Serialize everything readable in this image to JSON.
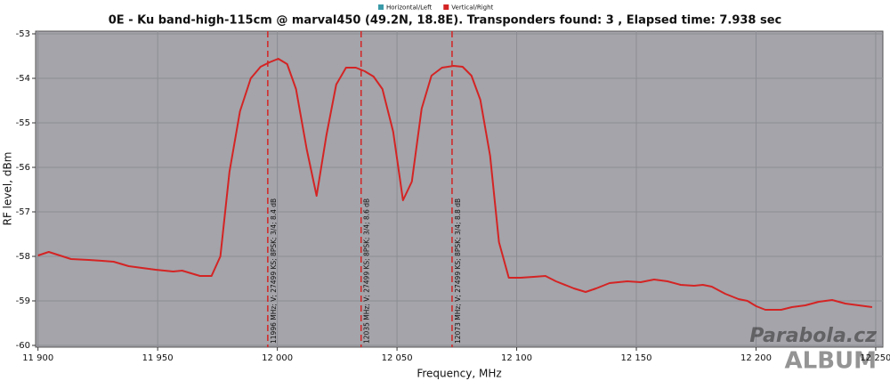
{
  "chart_data": {
    "type": "line",
    "title": "0E - Ku band-high-115cm @ marval450 (49.2N, 18.8E). Transponders found: 3 , Elapsed time: 7.938 sec",
    "xlabel": "Frequency, MHz",
    "ylabel": "RF level, dBm",
    "x": [
      11900,
      11904.5,
      11913.8,
      11921.2,
      11926.8,
      11931.6,
      11937.9,
      11943.5,
      11949.1,
      11956.5,
      11960.2,
      11967.7,
      11972.5,
      11976.2,
      11980,
      11984.4,
      11988.9,
      11993,
      11996.7,
      12000.4,
      12004.1,
      12007.8,
      12012.3,
      12016.4,
      12020.5,
      12024.6,
      12028.7,
      12032.8,
      12036.5,
      12040.2,
      12043.9,
      12048.4,
      12052.5,
      12056.2,
      12060.3,
      12064.4,
      12068.8,
      12073.7,
      12077.4,
      12081.1,
      12084.8,
      12088.9,
      12092.6,
      12096.7,
      12101.6,
      12107.1,
      12112,
      12116.4,
      12123.9,
      12128.8,
      12133.2,
      12138.8,
      12146.2,
      12151.8,
      12157.4,
      12163,
      12168.5,
      12174.1,
      12177.8,
      12181.5,
      12187.1,
      12192.7,
      12196.4,
      12200.1,
      12203.9,
      12210.5,
      12215,
      12220.6,
      12226.2,
      12231.8,
      12237.3,
      12242.9,
      12248.5
    ],
    "series": [
      {
        "name": "Horizontal/Left",
        "color": "#3a9aa8",
        "values": [
          null,
          null,
          null,
          null,
          null,
          null,
          null,
          null,
          null,
          null,
          null,
          null,
          null,
          null,
          null,
          null,
          null,
          null,
          null,
          null,
          null,
          null,
          null,
          null,
          null,
          null,
          null,
          null,
          null,
          null,
          null,
          null,
          null,
          null,
          null,
          null,
          null,
          null,
          null,
          null,
          null,
          null,
          null,
          null,
          null,
          null,
          null,
          null,
          null,
          null,
          null,
          null,
          null,
          null,
          null,
          null,
          null,
          null,
          null,
          null,
          null,
          null,
          null,
          null,
          null,
          null,
          null,
          null,
          null,
          null,
          null,
          null,
          null
        ]
      },
      {
        "name": "Vertical/Right",
        "color": "#d42424",
        "values": [
          -57.98,
          -57.9,
          -58.06,
          -58.08,
          -58.1,
          -58.12,
          -58.22,
          -58.26,
          -58.3,
          -58.34,
          -58.32,
          -58.44,
          -58.44,
          -58.0,
          -56.1,
          -54.74,
          -54.0,
          -53.74,
          -53.64,
          -53.56,
          -53.68,
          -54.24,
          -55.6,
          -56.64,
          -55.28,
          -54.14,
          -53.76,
          -53.76,
          -53.84,
          -53.96,
          -54.24,
          -55.2,
          -56.74,
          -56.32,
          -54.68,
          -53.94,
          -53.76,
          -53.72,
          -53.74,
          -53.94,
          -54.48,
          -55.74,
          -57.68,
          -58.48,
          -58.48,
          -58.46,
          -58.44,
          -58.56,
          -58.72,
          -58.8,
          -58.72,
          -58.6,
          -58.56,
          -58.58,
          -58.52,
          -58.56,
          -58.64,
          -58.66,
          -58.64,
          -58.68,
          -58.84,
          -58.96,
          -59.0,
          -59.12,
          -59.2,
          -59.2,
          -59.14,
          -59.1,
          -59.02,
          -58.98,
          -59.06,
          -59.1,
          -59.14
        ]
      }
    ],
    "markers": [
      {
        "x": 11996,
        "color": "#d42424",
        "label": "11996 MHz; V; 27499 KS; 8PSK; 3/4; 8.4 dB"
      },
      {
        "x": 12035,
        "color": "#d42424",
        "label": "12035 MHz; V; 27499 KS; 8PSK; 3/4; 8.6 dB"
      },
      {
        "x": 12073,
        "color": "#d42424",
        "label": "12073 MHz; V; 27499 KS; 8PSK; 3/4; 8.8 dB"
      }
    ],
    "xlim": [
      11899,
      12253
    ],
    "ylim": [
      -60,
      -53
    ],
    "xticks": [
      {
        "value": 11900,
        "label": "11 900"
      },
      {
        "value": 11950,
        "label": "11 950"
      },
      {
        "value": 12000,
        "label": "12 000"
      },
      {
        "value": 12050,
        "label": "12 050"
      },
      {
        "value": 12100,
        "label": "12 100"
      },
      {
        "value": 12150,
        "label": "12 150"
      },
      {
        "value": 12200,
        "label": "12 200"
      },
      {
        "value": 12250,
        "label": "12 250"
      }
    ],
    "yticks": [
      -60,
      -59,
      -58,
      -57,
      -56,
      -55,
      -54,
      -53
    ],
    "grid": true,
    "watermark": [
      "Parabola.cz",
      "ALBUM"
    ]
  }
}
